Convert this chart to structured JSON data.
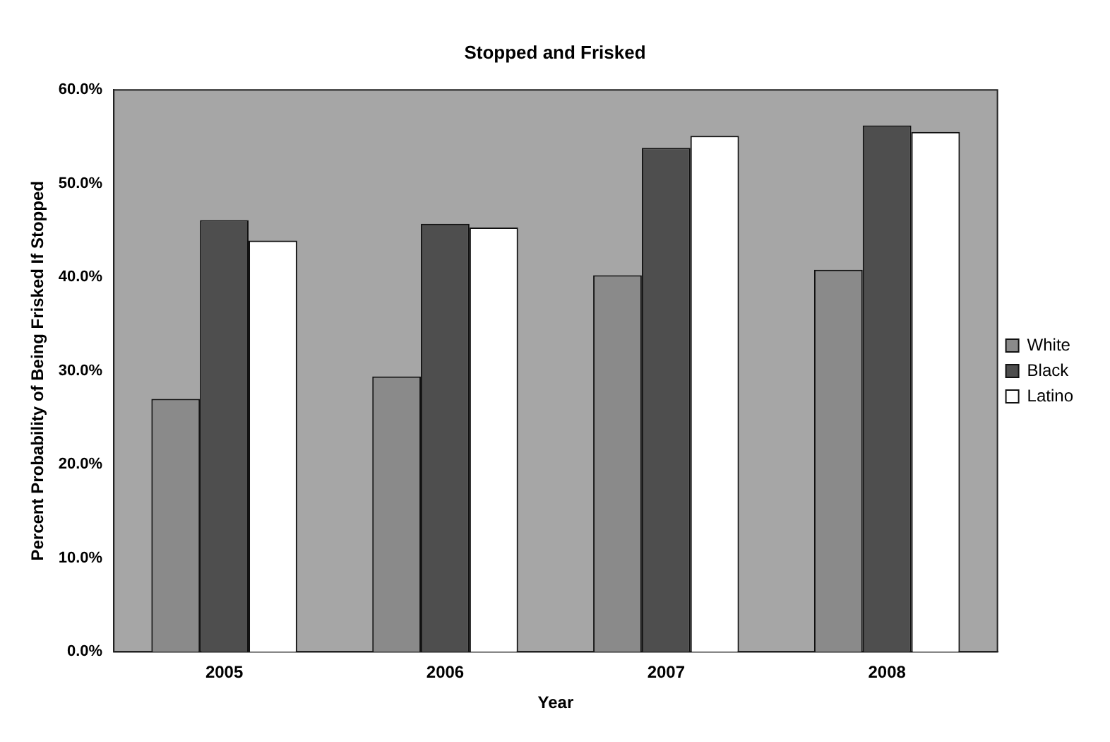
{
  "chart_data": {
    "type": "bar",
    "title": "Stopped and Frisked",
    "xlabel": "Year",
    "ylabel": "Percent Probability of Being Frisked If Stopped",
    "categories": [
      "2005",
      "2006",
      "2007",
      "2008"
    ],
    "series": [
      {
        "name": "White",
        "color": "#8a8a8a",
        "values": [
          27.0,
          29.4,
          40.2,
          40.8
        ]
      },
      {
        "name": "Black",
        "color": "#4e4e4e",
        "values": [
          46.1,
          45.7,
          53.8,
          56.2
        ]
      },
      {
        "name": "Latino",
        "color": "#ffffff",
        "values": [
          43.9,
          45.3,
          55.1,
          55.5
        ]
      }
    ],
    "ylim": [
      0,
      60
    ],
    "yticks": [
      {
        "value": 0,
        "label": "0.0%"
      },
      {
        "value": 10,
        "label": "10.0%"
      },
      {
        "value": 20,
        "label": "20.0%"
      },
      {
        "value": 30,
        "label": "30.0%"
      },
      {
        "value": 40,
        "label": "40.0%"
      },
      {
        "value": 50,
        "label": "50.0%"
      },
      {
        "value": 60,
        "label": "60.0%"
      }
    ],
    "grid": false,
    "legend": "right"
  }
}
